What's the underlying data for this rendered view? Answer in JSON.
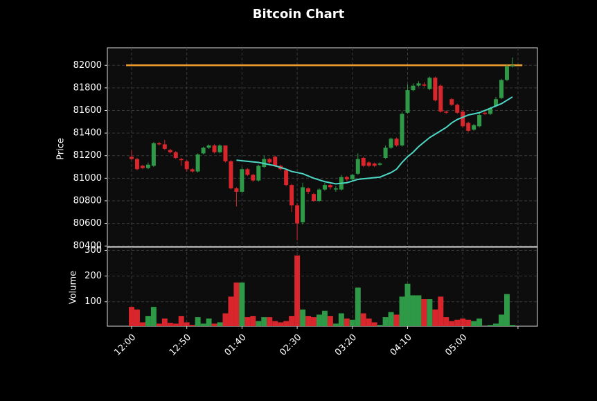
{
  "chart_data": {
    "type": "candlestick",
    "title": "Bitcoin Chart",
    "ylabel": "Price",
    "categories": [
      "12:00",
      null,
      null,
      null,
      null,
      null,
      null,
      null,
      null,
      null,
      "12:50",
      null,
      null,
      null,
      null,
      null,
      null,
      null,
      null,
      null,
      "01:40",
      null,
      null,
      null,
      null,
      null,
      null,
      null,
      null,
      null,
      "02:30",
      null,
      null,
      null,
      null,
      null,
      null,
      null,
      null,
      null,
      "03:20",
      null,
      null,
      null,
      null,
      null,
      null,
      null,
      null,
      null,
      "04:10",
      null,
      null,
      null,
      null,
      null,
      null,
      null,
      null,
      null,
      "05:00",
      null,
      null,
      null,
      null,
      null,
      null,
      null,
      null,
      null,
      null
    ],
    "open": [
      81190,
      81170,
      81110,
      81090,
      81110,
      81310,
      81300,
      81250,
      81230,
      81170,
      81150,
      81080,
      81060,
      81220,
      81270,
      81290,
      81230,
      81290,
      81150,
      80910,
      80880,
      81080,
      81030,
      80980,
      81100,
      81170,
      81190,
      81110,
      81070,
      80940,
      80760,
      80610,
      80910,
      80860,
      80800,
      80900,
      80940,
      80900,
      80900,
      81010,
      80990,
      81040,
      81180,
      81140,
      81130,
      81120,
      81180,
      81270,
      81350,
      81290,
      81580,
      81780,
      81820,
      81830,
      81790,
      81890,
      81820,
      81590,
      81700,
      81650,
      81590,
      81490,
      81430,
      81460,
      81580,
      81570,
      81640,
      81710,
      81870,
      81990,
      null
    ],
    "high": [
      81250,
      81180,
      81120,
      81140,
      81320,
      81320,
      81340,
      81260,
      81240,
      81180,
      81160,
      81090,
      81220,
      81280,
      81300,
      81300,
      81300,
      81290,
      81160,
      80920,
      81100,
      81090,
      81040,
      81120,
      81200,
      81180,
      81200,
      81120,
      81080,
      80950,
      80780,
      80960,
      80920,
      80870,
      80910,
      80960,
      80950,
      80930,
      81030,
      81020,
      81040,
      81220,
      81190,
      81150,
      81140,
      81140,
      81290,
      81360,
      81360,
      81590,
      81830,
      81840,
      81860,
      81850,
      81900,
      81900,
      81830,
      81600,
      81710,
      81660,
      81600,
      81500,
      81480,
      81590,
      81600,
      81630,
      81720,
      81880,
      82010,
      82070,
      null
    ],
    "low": [
      81160,
      81070,
      81080,
      81080,
      81100,
      81290,
      81250,
      81220,
      81170,
      81110,
      81060,
      81050,
      81050,
      81210,
      81260,
      81220,
      81220,
      81140,
      80900,
      80750,
      80870,
      81020,
      80970,
      80970,
      81090,
      81130,
      81100,
      81070,
      80930,
      80700,
      80450,
      80590,
      80860,
      80790,
      80790,
      80890,
      80900,
      80880,
      80890,
      80970,
      80980,
      81030,
      81100,
      81100,
      81100,
      81110,
      81170,
      81260,
      81280,
      81280,
      81570,
      81770,
      81810,
      81810,
      81780,
      81680,
      81580,
      81570,
      81640,
      81570,
      81450,
      81410,
      81420,
      81450,
      81560,
      81560,
      81630,
      81700,
      81860,
      81980,
      null
    ],
    "close": [
      81170,
      81080,
      81090,
      81120,
      81310,
      81300,
      81260,
      81230,
      81180,
      81160,
      81080,
      81060,
      81210,
      81270,
      81290,
      81230,
      81290,
      81150,
      80910,
      80880,
      81080,
      81030,
      80980,
      81110,
      81170,
      81140,
      81110,
      81080,
      80940,
      80760,
      80600,
      80920,
      80880,
      80800,
      80900,
      80940,
      80920,
      80910,
      81010,
      80990,
      81030,
      81170,
      81110,
      81110,
      81110,
      81130,
      81270,
      81350,
      81290,
      81570,
      81780,
      81820,
      81840,
      81820,
      81890,
      81690,
      81590,
      81580,
      81650,
      81580,
      81460,
      81420,
      81470,
      81560,
      81570,
      81620,
      81700,
      81870,
      81990,
      82000,
      null
    ],
    "up_color": "#2e9a48",
    "down_color": "#d8262c",
    "ylim": [
      80395,
      82155
    ],
    "yticks": [
      80400,
      80600,
      80800,
      81000,
      81200,
      81400,
      81600,
      81800,
      82000
    ],
    "grid": true,
    "moving_average": {
      "color": "#4dd9c6",
      "values": [
        null,
        null,
        null,
        null,
        null,
        null,
        null,
        null,
        null,
        null,
        null,
        null,
        null,
        null,
        null,
        null,
        null,
        null,
        null,
        81160,
        81155,
        81150,
        81145,
        81140,
        81130,
        81120,
        81110,
        81095,
        81080,
        81060,
        81050,
        81040,
        81020,
        81000,
        80985,
        80970,
        80960,
        80950,
        80955,
        80960,
        80975,
        80990,
        80995,
        81000,
        81005,
        81010,
        81030,
        81050,
        81080,
        81140,
        81190,
        81230,
        81280,
        81320,
        81360,
        81390,
        81420,
        81450,
        81490,
        81520,
        81540,
        81560,
        81570,
        81580,
        81600,
        81620,
        81640,
        81660,
        81690,
        81720,
        null
      ]
    },
    "hlines": [
      {
        "value": 82000,
        "color": "#f0a030"
      }
    ],
    "volume": {
      "ylabel": "Volume",
      "ylim": [
        5,
        312
      ],
      "yticks": [
        100,
        200,
        300
      ],
      "values": [
        80,
        70,
        20,
        45,
        80,
        15,
        35,
        18,
        15,
        45,
        20,
        10,
        40,
        15,
        35,
        15,
        20,
        55,
        120,
        175,
        175,
        40,
        45,
        25,
        40,
        40,
        25,
        20,
        25,
        45,
        280,
        70,
        45,
        40,
        50,
        65,
        45,
        15,
        55,
        35,
        30,
        155,
        55,
        35,
        20,
        10,
        40,
        60,
        50,
        120,
        170,
        125,
        125,
        110,
        110,
        70,
        120,
        40,
        25,
        30,
        35,
        30,
        25,
        35,
        5,
        10,
        15,
        50,
        130,
        10,
        null
      ]
    }
  }
}
